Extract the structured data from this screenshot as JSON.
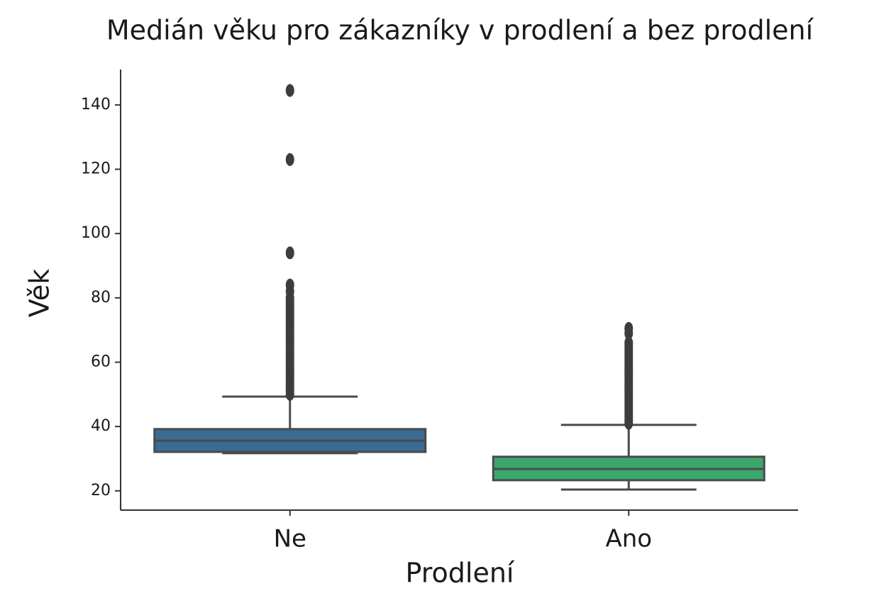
{
  "chart_data": {
    "type": "box",
    "title": "Medián věku pro zákazníky v prodlení a bez prodlení",
    "x_label": "Prodlení",
    "y_label": "Věk",
    "categories": [
      "Ne",
      "Ano"
    ],
    "colors": [
      "#3a6b95",
      "#3aa76d"
    ],
    "boxes": [
      {
        "whislo": 31.7,
        "q1": 32.1,
        "med": 35.6,
        "q3": 39.2,
        "whishi": 49.3,
        "fliers": [
          50,
          51,
          52,
          53,
          54,
          55,
          56,
          57,
          58,
          59,
          60,
          61,
          62,
          63,
          64,
          65,
          66,
          67,
          68,
          69,
          70,
          71,
          72,
          73,
          74,
          75,
          76,
          77,
          78,
          79,
          80,
          82,
          84,
          94,
          123,
          144.5
        ]
      },
      {
        "whislo": 20.4,
        "q1": 23.3,
        "med": 26.8,
        "q3": 30.6,
        "whishi": 40.5,
        "fliers": [
          41,
          42,
          43,
          44,
          45,
          46,
          47,
          48,
          49,
          50,
          51,
          52,
          53,
          54,
          55,
          56,
          57,
          58,
          59,
          60,
          61,
          62,
          63,
          64,
          65,
          66,
          69,
          70.5
        ]
      }
    ],
    "ylim": [
      14,
      151
    ],
    "yticks": [
      20,
      40,
      60,
      80,
      100,
      120,
      140
    ]
  }
}
